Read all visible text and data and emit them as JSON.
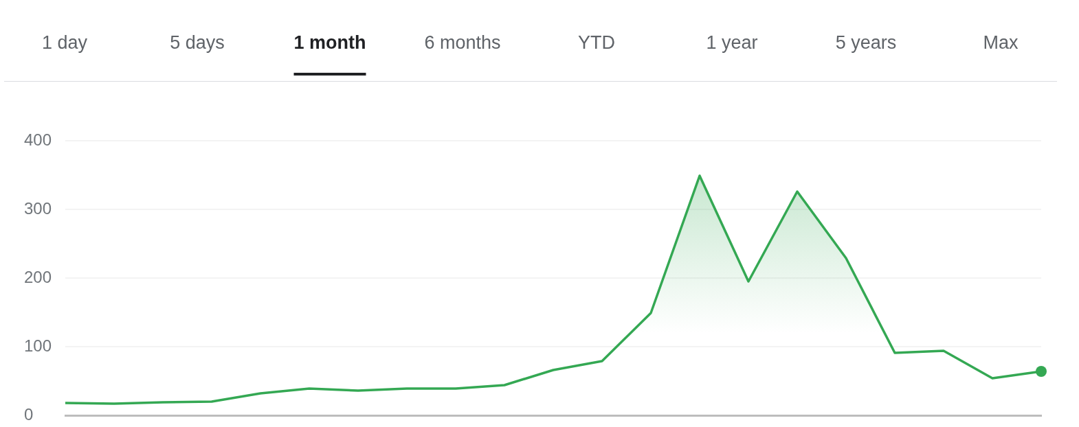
{
  "chart_data": {
    "type": "area",
    "annotations": [
      "1 day",
      "5 days",
      "1 month",
      "6 months",
      "YTD",
      "1 year",
      "5 years",
      "Max"
    ],
    "categories": [
      null,
      null,
      null,
      null,
      null,
      null,
      null,
      null,
      null,
      null,
      null,
      null,
      null,
      null,
      null,
      null,
      null,
      null,
      null,
      null,
      null
    ],
    "series": [
      {
        "color": "#34a853",
        "values": [
          18,
          17,
          19,
          20,
          32,
          39,
          36,
          39,
          39,
          44,
          66,
          79,
          149,
          349,
          195,
          326,
          229,
          91,
          94,
          54,
          64
        ]
      }
    ],
    "ylim": [
      0,
      400
    ],
    "yticks": [
      0,
      100,
      200,
      300,
      400
    ],
    "grid": "y",
    "tick_labels": "y"
  }
}
